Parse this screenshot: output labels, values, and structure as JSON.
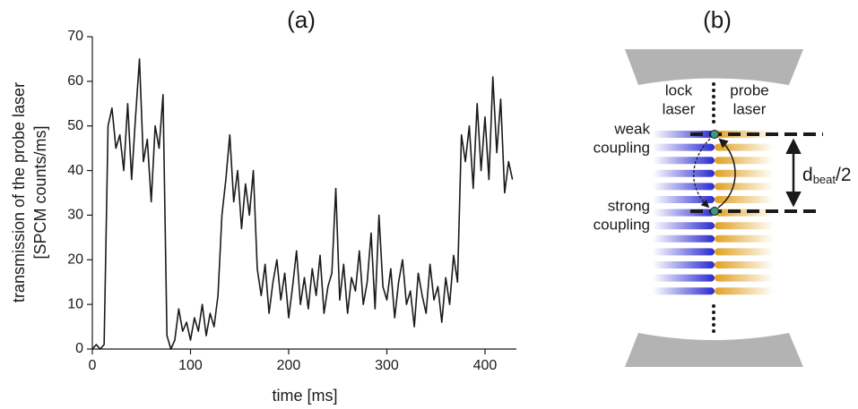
{
  "chart_data": {
    "type": "line",
    "title": "(a)",
    "xlabel": "time [ms]",
    "ylabel": [
      "transmission of the probe laser",
      "[SPCM counts/ms]"
    ],
    "x": [
      0,
      4,
      8,
      12,
      16,
      20,
      24,
      28,
      32,
      36,
      40,
      44,
      48,
      52,
      56,
      60,
      64,
      68,
      72,
      76,
      80,
      84,
      88,
      92,
      96,
      100,
      104,
      108,
      112,
      116,
      120,
      124,
      128,
      132,
      136,
      140,
      144,
      148,
      152,
      156,
      160,
      164,
      168,
      172,
      176,
      180,
      184,
      188,
      192,
      196,
      200,
      204,
      208,
      212,
      216,
      220,
      224,
      228,
      232,
      236,
      240,
      244,
      248,
      252,
      256,
      260,
      264,
      268,
      272,
      276,
      280,
      284,
      288,
      292,
      296,
      300,
      304,
      308,
      312,
      316,
      320,
      324,
      328,
      332,
      336,
      340,
      344,
      348,
      352,
      356,
      360,
      364,
      368,
      372,
      376,
      380,
      384,
      388,
      392,
      396,
      400,
      404,
      408,
      412,
      416,
      420,
      424,
      428
    ],
    "values": [
      0,
      1,
      0,
      1,
      50,
      54,
      45,
      48,
      40,
      55,
      38,
      52,
      65,
      42,
      47,
      33,
      50,
      45,
      57,
      3,
      0,
      2,
      9,
      4,
      6,
      2,
      7,
      4,
      10,
      3,
      8,
      5,
      12,
      30,
      38,
      48,
      33,
      40,
      27,
      37,
      30,
      40,
      18,
      12,
      19,
      8,
      15,
      20,
      11,
      17,
      7,
      14,
      22,
      10,
      16,
      9,
      18,
      12,
      21,
      8,
      14,
      17,
      36,
      11,
      19,
      8,
      16,
      13,
      22,
      10,
      15,
      26,
      9,
      30,
      14,
      11,
      18,
      7,
      15,
      20,
      10,
      13,
      5,
      17,
      12,
      8,
      19,
      11,
      14,
      6,
      16,
      10,
      21,
      15,
      48,
      42,
      50,
      36,
      55,
      40,
      52,
      38,
      61,
      44,
      56,
      35,
      42,
      38
    ],
    "color": "#1a1a1a",
    "xlim": [
      0,
      432
    ],
    "ylim": [
      0,
      70
    ],
    "xticks": [
      0,
      100,
      200,
      300,
      400
    ],
    "yticks": [
      0,
      10,
      20,
      30,
      40,
      50,
      60,
      70
    ]
  },
  "diagram": {
    "title": "(b)",
    "lock_laser": [
      "lock",
      "laser"
    ],
    "probe_laser": [
      "probe",
      "laser"
    ],
    "weak_coupling": [
      "weak",
      "coupling"
    ],
    "strong_coupling": [
      "strong",
      "coupling"
    ],
    "distance": {
      "main": "d",
      "sub": "beat",
      "suffix": "/2"
    }
  }
}
